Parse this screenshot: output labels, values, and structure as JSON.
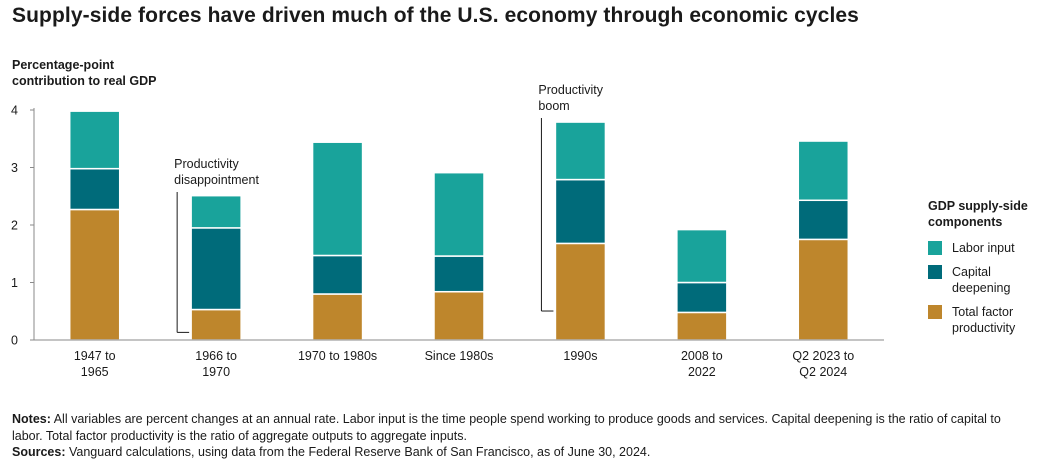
{
  "header": {
    "title": "Supply-side forces have driven much of the U.S. economy through economic cycles"
  },
  "chart_data": {
    "type": "bar",
    "stacked": true,
    "ylabel_lines": [
      "Percentage-point",
      "contribution to real GDP"
    ],
    "ylim": [
      0,
      4
    ],
    "yticks": [
      0,
      1,
      2,
      3,
      4
    ],
    "categories": [
      [
        "1947 to",
        "1965"
      ],
      [
        "1966 to",
        "1970"
      ],
      [
        "1970 to 1980s"
      ],
      [
        "Since 1980s"
      ],
      [
        "1990s"
      ],
      [
        "2008 to",
        "2022"
      ],
      [
        "Q2 2023 to",
        "Q2 2024"
      ]
    ],
    "series": [
      {
        "name": "Total factor productivity",
        "color": "#BE862C",
        "values": [
          2.27,
          0.53,
          0.8,
          0.84,
          1.68,
          0.48,
          1.75
        ]
      },
      {
        "name": "Capital deepening",
        "color": "#006B7A",
        "values": [
          0.71,
          1.42,
          0.67,
          0.62,
          1.11,
          0.52,
          0.68
        ]
      },
      {
        "name": "Labor input",
        "color": "#19A39B",
        "values": [
          1.0,
          0.56,
          1.97,
          1.45,
          1.0,
          0.92,
          1.03
        ]
      }
    ],
    "annotations": [
      {
        "category_index": 1,
        "lines": [
          "Productivity",
          "disappointment"
        ]
      },
      {
        "category_index": 4,
        "lines": [
          "Productivity",
          "boom"
        ]
      }
    ]
  },
  "legend": {
    "title": "GDP supply-side components",
    "items": [
      {
        "label": "Labor input",
        "color": "#19A39B"
      },
      {
        "label": "Capital deepening",
        "color": "#006B7A"
      },
      {
        "label": "Total factor productivity",
        "color": "#BE862C"
      }
    ]
  },
  "notes": {
    "notes_label": "Notes:",
    "notes_text": "All variables are percent changes at an annual rate. Labor input is the time people spend working to produce goods and services. Capital deepening is the ratio of capital to labor. Total factor productivity is the ratio of aggregate outputs to aggregate inputs.",
    "sources_label": "Sources:",
    "sources_text": "Vanguard calculations, using data from the Federal Reserve Bank of San Francisco, as of June 30, 2024."
  }
}
